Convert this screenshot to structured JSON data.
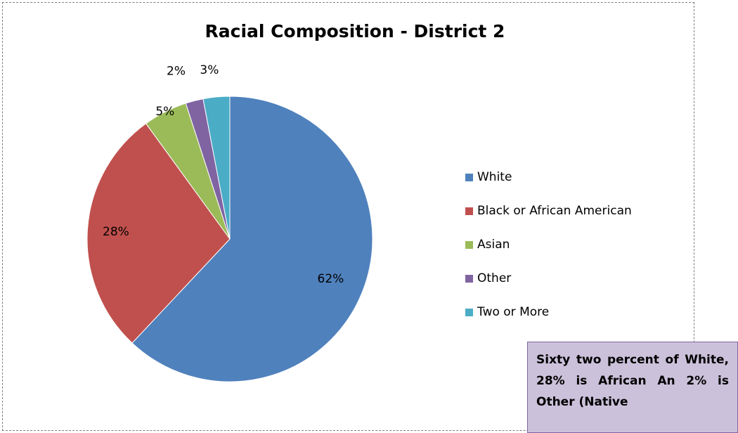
{
  "chart_data": {
    "type": "pie",
    "title": "Racial Composition - District 2",
    "categories": [
      "White",
      "Black or African American",
      "Asian",
      "Other",
      "Two or More"
    ],
    "values": [
      62,
      28,
      5,
      2,
      3
    ],
    "labels": [
      "62%",
      "28%",
      "5%",
      "2%",
      "3%"
    ],
    "colors": [
      "#4f81bd",
      "#c0504d",
      "#9bbb59",
      "#8064a2",
      "#4bacc6"
    ],
    "legend_position": "right"
  },
  "note": {
    "text": "Sixty two percent of White, 28% is African An 2% is Other (Native"
  }
}
